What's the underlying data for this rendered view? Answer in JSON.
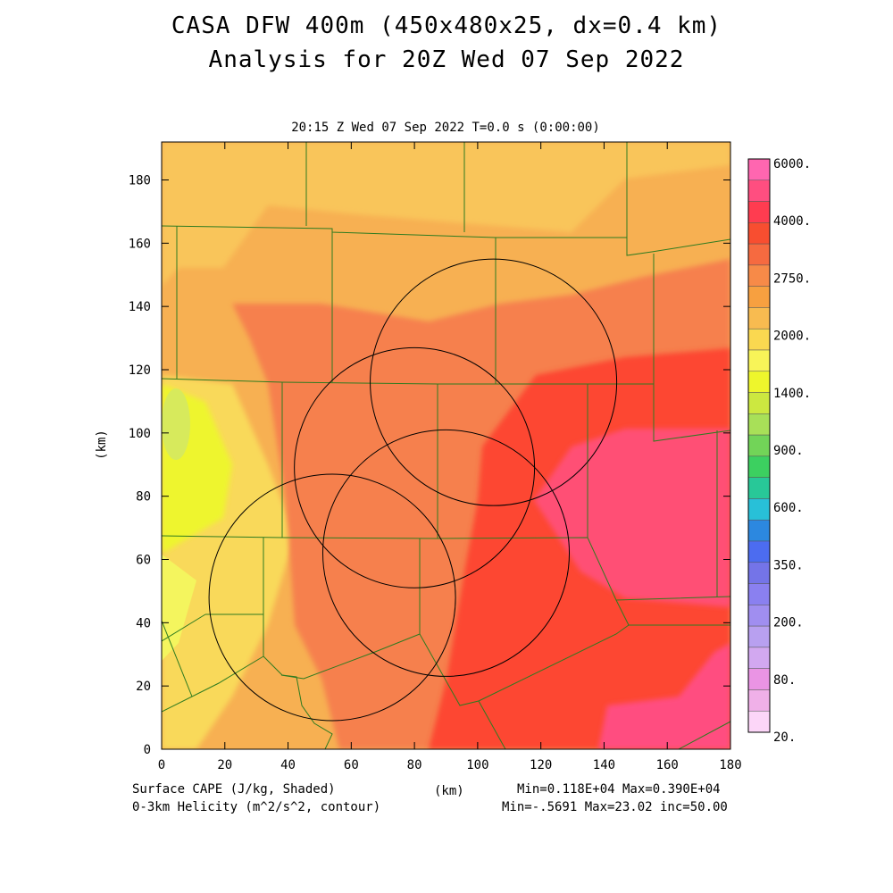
{
  "header": {
    "title_line1": "CASA DFW 400m (450x480x25, dx=0.4 km)",
    "title_line2": "Analysis for 20Z Wed 07 Sep 2022",
    "subtitle": "20:15 Z Wed 07 Sep 2022    T=0.0 s (0:00:00)"
  },
  "footer": {
    "field1": "Surface CAPE (J/kg, Shaded)",
    "field2": "0-3km Helicity (m^2/s^2, contour)",
    "xunit": "(km)",
    "stats1": "Min=0.118E+04 Max=0.390E+04",
    "stats2": "Min=-.5691 Max=23.02 inc=50.00"
  },
  "chart_data": {
    "type": "heatmap",
    "xlabel": "",
    "ylabel": "(km)",
    "xlim": [
      0,
      180
    ],
    "ylim": [
      0,
      192
    ],
    "xticks": [
      "0",
      "20",
      "40",
      "60",
      "80",
      "100",
      "120",
      "140",
      "160",
      "180"
    ],
    "yticks": [
      "0",
      "20",
      "40",
      "60",
      "80",
      "100",
      "120",
      "140",
      "160",
      "180"
    ],
    "colorbar": {
      "labels": [
        "6000.",
        "4000.",
        "2750.",
        "2000.",
        "1400.",
        "900.",
        "600.",
        "350.",
        "200.",
        "80.",
        "20."
      ],
      "colors": [
        "#ff66b0",
        "#ff4e80",
        "#ff3c50",
        "#f84e30",
        "#f66a40",
        "#f78a48",
        "#f7a040",
        "#f8bb50",
        "#fad850",
        "#f8f458",
        "#eef62c",
        "#cce840",
        "#a8e058",
        "#72d458",
        "#3cd060",
        "#28c898",
        "#28c0d8",
        "#2c88e0",
        "#4c6cf0",
        "#7474e8",
        "#8a80f0",
        "#a08ef0",
        "#b8a0f0",
        "#d2a8f0",
        "#ea94e4",
        "#f0b0e8",
        "#fcd6f8"
      ]
    },
    "regions": [
      {
        "name": "bg",
        "cape": 2100
      },
      {
        "name": "northwest",
        "cape": 2250
      },
      {
        "name": "central",
        "cape": 2600
      },
      {
        "name": "east",
        "cape": 3000
      },
      {
        "name": "southeast-max",
        "cape": 3800
      },
      {
        "name": "west-min",
        "cape": 1500
      }
    ],
    "radar_rings": [
      {
        "cx": 105,
        "cy": 116,
        "r": 39
      },
      {
        "cx": 80,
        "cy": 89,
        "r": 38
      },
      {
        "cx": 90,
        "cy": 62,
        "r": 39
      },
      {
        "cx": 54,
        "cy": 48,
        "r": 39
      }
    ],
    "min": "0.118E+04",
    "max": "0.390E+04"
  }
}
